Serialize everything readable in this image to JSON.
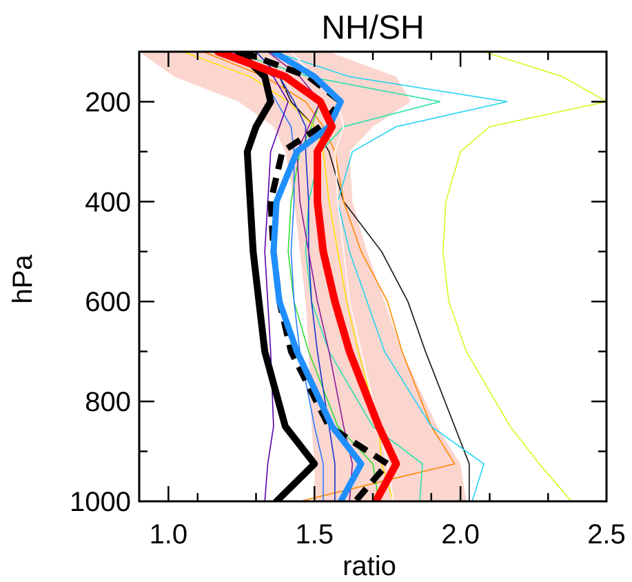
{
  "chart_data": {
    "type": "line",
    "title": "NH/SH",
    "xlabel": "ratio",
    "ylabel": "hPa",
    "xlim": [
      0.9,
      2.5
    ],
    "ylim": [
      100,
      1000
    ],
    "y_inverted": true,
    "grid": false,
    "xticks": [
      1.0,
      1.5,
      2.0,
      2.5
    ],
    "xtick_labels": [
      "1.0",
      "1.5",
      "2.0",
      "2.5"
    ],
    "yticks": [
      200,
      400,
      600,
      800,
      1000
    ],
    "ytick_labels": [
      "200",
      "400",
      "600",
      "800",
      "1000"
    ],
    "levels": [
      100,
      150,
      200,
      250,
      300,
      400,
      500,
      600,
      700,
      850,
      925,
      1000
    ],
    "band": {
      "color": "#fbd6cf",
      "lower": [
        0.9,
        1.02,
        1.24,
        1.36,
        1.4,
        1.43,
        1.45,
        1.47,
        1.48,
        1.49,
        1.5,
        1.5
      ],
      "upper": [
        1.55,
        1.78,
        1.83,
        1.7,
        1.62,
        1.63,
        1.68,
        1.74,
        1.8,
        1.92,
        2.0,
        2.02
      ]
    },
    "series": [
      {
        "color": "#000000",
        "width": 10,
        "dash": "",
        "values": [
          1.24,
          1.33,
          1.35,
          1.3,
          1.27,
          1.28,
          1.29,
          1.31,
          1.33,
          1.4,
          1.5,
          1.37
        ]
      },
      {
        "color": "#000000",
        "width": 9,
        "dash": "22,13",
        "values": [
          1.25,
          1.48,
          1.59,
          1.52,
          1.39,
          1.35,
          1.36,
          1.38,
          1.42,
          1.55,
          1.75,
          1.64
        ]
      },
      {
        "color": "#ff0000",
        "width": 11,
        "dash": "",
        "values": [
          1.17,
          1.4,
          1.52,
          1.56,
          1.51,
          1.51,
          1.53,
          1.57,
          1.62,
          1.72,
          1.78,
          1.71
        ]
      },
      {
        "color": "#1f8fff",
        "width": 9,
        "dash": "",
        "values": [
          1.36,
          1.5,
          1.59,
          1.55,
          1.44,
          1.37,
          1.36,
          1.38,
          1.44,
          1.56,
          1.66,
          1.59
        ]
      },
      {
        "color": "#111111",
        "width": 1.6,
        "dash": "",
        "values": [
          1.3,
          1.38,
          1.42,
          1.5,
          1.55,
          1.6,
          1.73,
          1.82,
          1.88,
          1.98,
          2.03,
          2.03
        ]
      },
      {
        "color": "#ff8800",
        "width": 1.6,
        "dash": "",
        "values": [
          1.12,
          1.33,
          1.47,
          1.53,
          1.57,
          1.6,
          1.66,
          1.75,
          1.8,
          1.9,
          1.98,
          1.45
        ]
      },
      {
        "color": "#ccff22",
        "width": 1.6,
        "dash": "",
        "values": [
          2.08,
          2.35,
          2.5,
          2.1,
          2.0,
          1.95,
          1.94,
          1.96,
          2.02,
          2.17,
          2.27,
          2.38
        ]
      },
      {
        "color": "#22d4f2",
        "width": 1.6,
        "dash": "",
        "values": [
          1.36,
          1.62,
          2.16,
          1.78,
          1.63,
          1.58,
          1.62,
          1.68,
          1.74,
          1.9,
          2.08,
          2.04
        ]
      },
      {
        "color": "#28e0a8",
        "width": 1.6,
        "dash": "",
        "values": [
          1.22,
          1.48,
          1.93,
          1.6,
          1.52,
          1.48,
          1.47,
          1.49,
          1.55,
          1.7,
          1.87,
          1.86
        ]
      },
      {
        "color": "#33dd33",
        "width": 1.6,
        "dash": "",
        "values": [
          1.2,
          1.38,
          1.52,
          1.49,
          1.45,
          1.42,
          1.41,
          1.43,
          1.48,
          1.58,
          1.7,
          1.72
        ]
      },
      {
        "color": "#ffe000",
        "width": 1.6,
        "dash": "",
        "values": [
          1.05,
          1.28,
          1.41,
          1.5,
          1.53,
          1.55,
          1.58,
          1.61,
          1.65,
          1.72,
          1.73,
          1.77
        ]
      },
      {
        "color": "#ffffff",
        "width": 1.6,
        "dash": "",
        "values": [
          1.42,
          1.5,
          1.58,
          1.6,
          1.57,
          1.58,
          1.6,
          1.62,
          1.66,
          1.72,
          1.75,
          1.77
        ]
      },
      {
        "color": "#2a7bff",
        "width": 1.6,
        "dash": "",
        "values": [
          1.25,
          1.32,
          1.37,
          1.42,
          1.43,
          1.43,
          1.42,
          1.43,
          1.45,
          1.5,
          1.53,
          1.53
        ]
      },
      {
        "color": "#1133cc",
        "width": 1.6,
        "dash": "",
        "values": [
          1.3,
          1.38,
          1.43,
          1.47,
          1.47,
          1.48,
          1.48,
          1.49,
          1.51,
          1.55,
          1.57,
          1.57
        ]
      },
      {
        "color": "#5500aa",
        "width": 1.6,
        "dash": "",
        "values": [
          1.22,
          1.36,
          1.41,
          1.38,
          1.35,
          1.34,
          1.33,
          1.34,
          1.35,
          1.36,
          1.34,
          1.33
        ]
      },
      {
        "color": "#8a1a9a",
        "width": 1.6,
        "dash": "",
        "values": [
          1.34,
          1.45,
          1.52,
          1.48,
          1.44,
          1.45,
          1.48,
          1.51,
          1.55,
          1.6,
          1.63,
          1.62
        ]
      }
    ]
  }
}
